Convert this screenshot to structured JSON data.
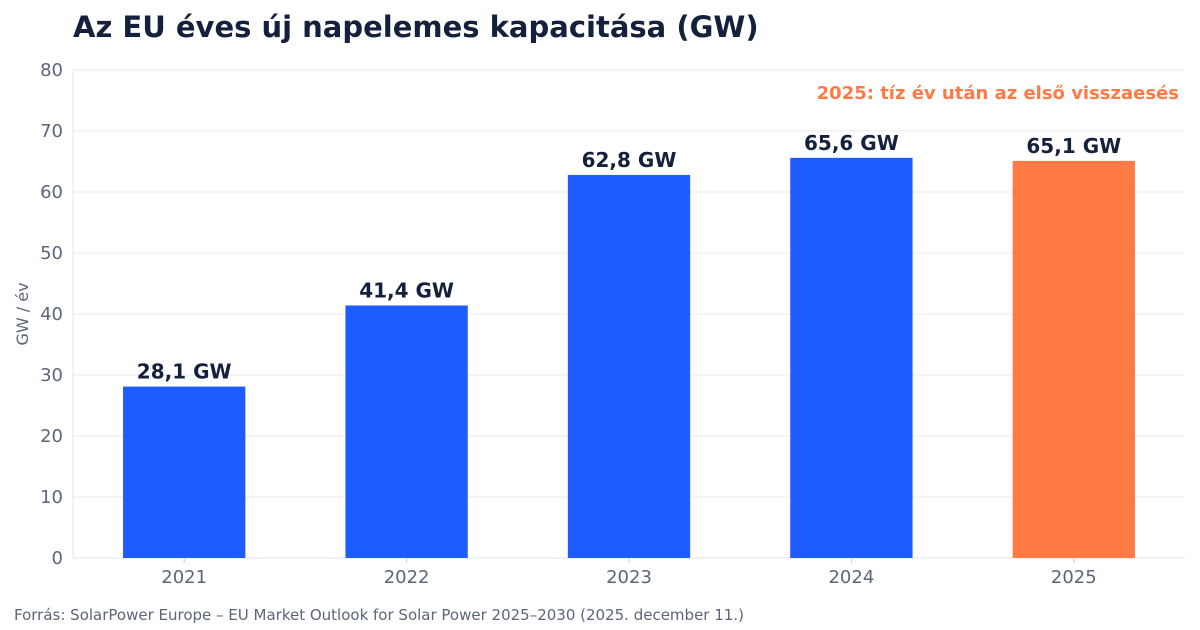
{
  "chart_data": {
    "type": "bar",
    "title": "Az EU éves új napelemes kapacitása (GW)",
    "xlabel": "",
    "ylabel": "GW / év",
    "categories": [
      "2021",
      "2022",
      "2023",
      "2024",
      "2025"
    ],
    "values": [
      28.1,
      41.4,
      62.8,
      65.6,
      65.1
    ],
    "value_labels": [
      "28,1 GW",
      "41,4 GW",
      "62,8 GW",
      "65,6 GW",
      "65,1 GW"
    ],
    "ylim": [
      0,
      80
    ],
    "yticks": [
      0,
      10,
      20,
      30,
      40,
      50,
      60,
      70,
      80
    ],
    "grid": true,
    "colors": {
      "default_bar": "#1f5cff",
      "highlight_bar": "#ff7a45",
      "annotation": "#ff7a45",
      "label": "#14213d"
    },
    "highlight_index": 4,
    "annotation": "2025: tíz év után az első visszaesés"
  },
  "source": "Forrás: SolarPower Europe – EU Market Outlook for Solar Power 2025–2030 (2025. december 11.)"
}
